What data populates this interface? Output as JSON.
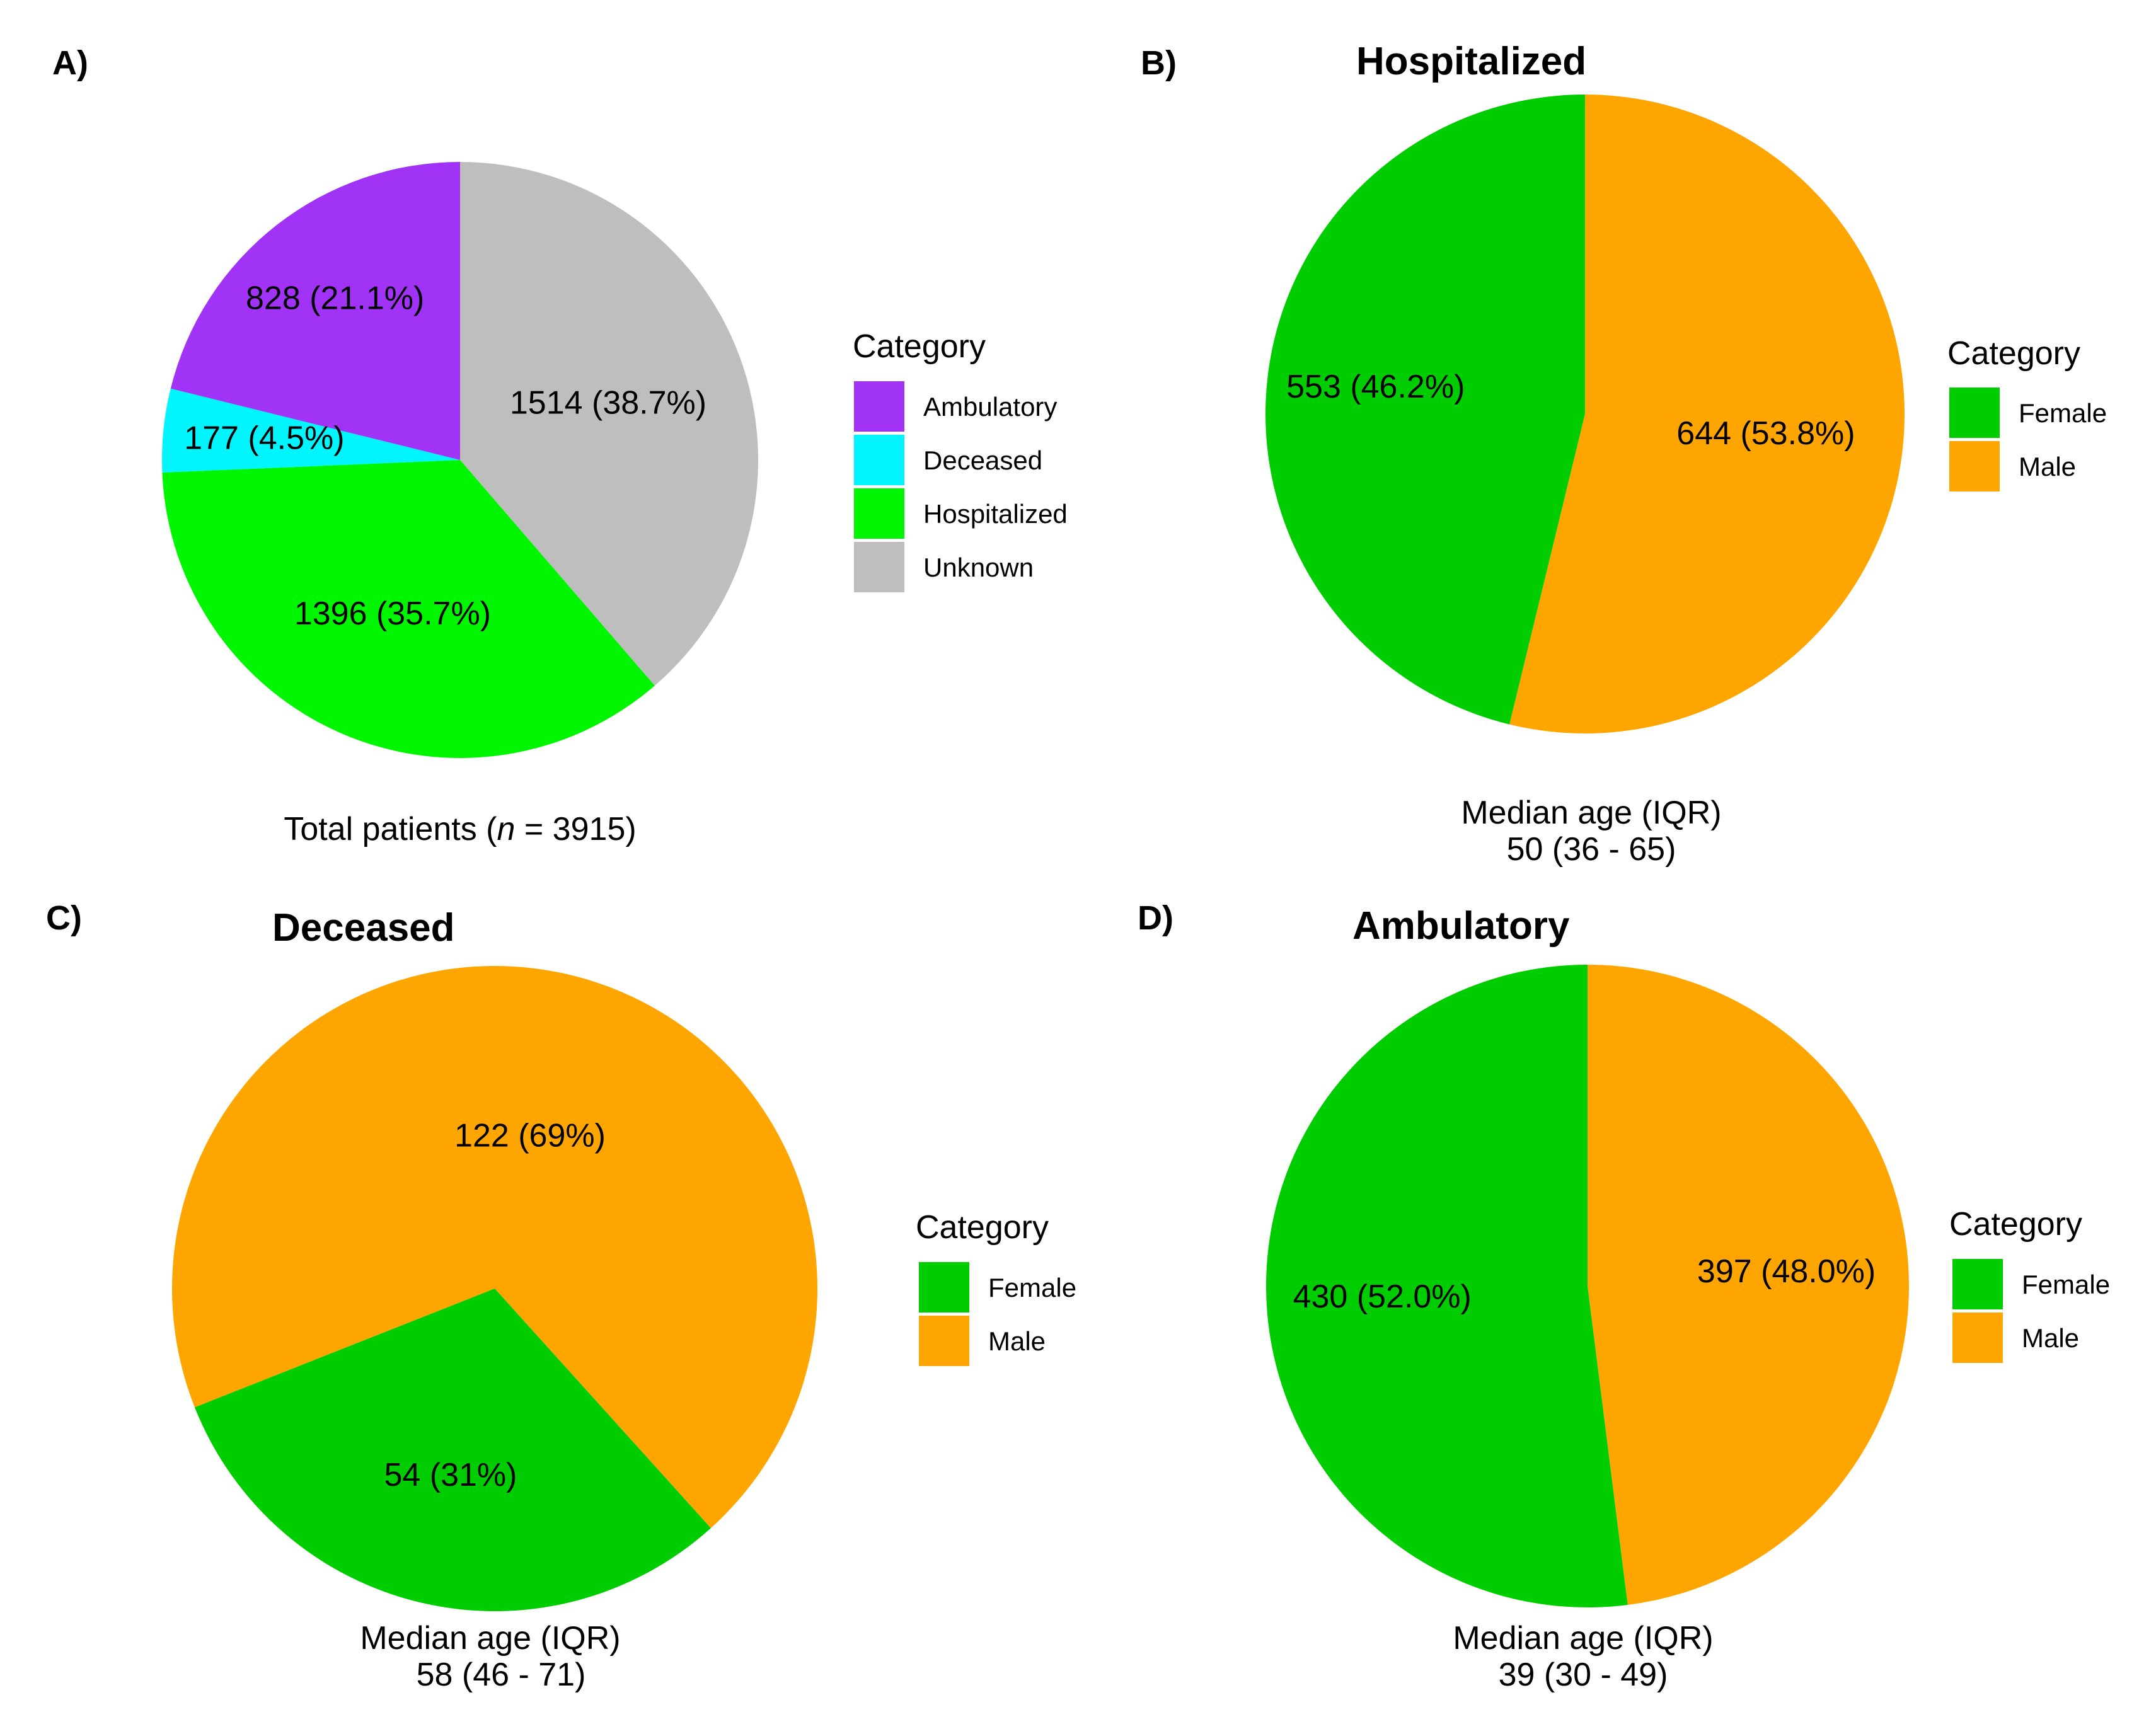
{
  "legend_title": "Category",
  "colors": {
    "Ambulatory": "#a033f5",
    "Deceased": "#00f5ff",
    "Hospitalized": "#00f500",
    "Unknown": "#bebebe",
    "Female": "#00cd00",
    "Male": "#ffa500"
  },
  "chart_data": [
    {
      "panel": "A)",
      "type": "pie",
      "title": "",
      "categories": [
        "Ambulatory",
        "Deceased",
        "Hospitalized",
        "Unknown"
      ],
      "values": [
        828,
        177,
        1396,
        1514
      ],
      "labels": [
        "828 (21.1%)",
        "177 (4.5%)",
        "1396 (35.7%)",
        "1514 (38.7%)"
      ],
      "caption_parts": [
        "Total patients (",
        "n",
        " = 3915)"
      ]
    },
    {
      "panel": "B)",
      "type": "pie",
      "title": "Hospitalized",
      "categories": [
        "Female",
        "Male"
      ],
      "values": [
        553,
        644
      ],
      "labels": [
        "553 (46.2%)",
        "644 (53.8%)"
      ],
      "caption_lines": [
        "Median age (IQR)",
        "50 (36 - 65)"
      ]
    },
    {
      "panel": "C)",
      "type": "pie",
      "title": "Deceased",
      "categories": [
        "Female",
        "Male"
      ],
      "values": [
        54,
        122
      ],
      "labels": [
        "54 (31%)",
        "122 (69%)"
      ],
      "caption_lines": [
        "Median age (IQR)",
        "58 (46 - 71)"
      ]
    },
    {
      "panel": "D)",
      "type": "pie",
      "title": "Ambulatory",
      "categories": [
        "Female",
        "Male"
      ],
      "values": [
        430,
        397
      ],
      "labels": [
        "430 (52.0%)",
        "397 (48.0%)"
      ],
      "caption_lines": [
        "Median age (IQR)",
        "39 (30 - 49)"
      ]
    }
  ]
}
